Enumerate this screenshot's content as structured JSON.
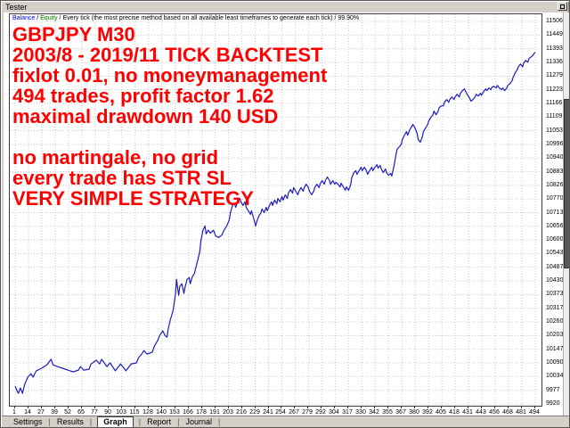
{
  "window": {
    "title": "Tester"
  },
  "legend": {
    "balance_label": "Balance",
    "equity_label": "Equity",
    "separator": " / ",
    "model_text": "Every tick (the most precise method based on all available least timeframes to generate each tick)",
    "quality_text": "99.90%"
  },
  "annotation": {
    "color": "#ff0000",
    "lines": [
      "GBPJPY M30",
      "2003/8 - 2019/11 TICK BACKTEST",
      "fixlot 0.01, no moneymanagement",
      "494 trades, profit factor 1.62",
      "maximal drawdown 140 USD",
      "",
      "no martingale, no grid",
      "every trade has STR SL",
      "VERY SIMPLE STRATEGY"
    ]
  },
  "tabs": {
    "separator": "|",
    "items": [
      {
        "label": "Settings",
        "active": false
      },
      {
        "label": "Results",
        "active": false
      },
      {
        "label": "Graph",
        "active": true
      },
      {
        "label": "Report",
        "active": false
      },
      {
        "label": "Journal",
        "active": false
      }
    ]
  },
  "chart_data": {
    "type": "line",
    "title": "",
    "xlabel": "",
    "ylabel": "",
    "grid": "dotted",
    "legend_position": "top-left",
    "line_color": "#1c1cc0",
    "x_range": [
      1,
      494
    ],
    "y_range": [
      9920,
      11506
    ],
    "x_ticks": [
      "1",
      "14",
      "27",
      "39",
      "52",
      "65",
      "77",
      "90",
      "103",
      "115",
      "128",
      "140",
      "153",
      "166",
      "178",
      "191",
      "203",
      "216",
      "229",
      "241",
      "254",
      "267",
      "279",
      "292",
      "304",
      "317",
      "330",
      "342",
      "355",
      "367",
      "380",
      "392",
      "405",
      "418",
      "431",
      "443",
      "456",
      "468",
      "481",
      "494"
    ],
    "y_ticks": [
      "11506",
      "11449",
      "11393",
      "11336",
      "11279",
      "11223",
      "11166",
      "11109",
      "11053",
      "10996",
      "10940",
      "10883",
      "10826",
      "10770",
      "10713",
      "10656",
      "10600",
      "10543",
      "10487",
      "10430",
      "10373",
      "10317",
      "10260",
      "10203",
      "10147",
      "10090",
      "10034",
      "9977",
      "9920"
    ],
    "series": [
      {
        "name": "Balance",
        "x": [
          1,
          3,
          4,
          6,
          8,
          10,
          13,
          16,
          18,
          21,
          26,
          31,
          35,
          37,
          41,
          46,
          51,
          56,
          61,
          63,
          66,
          71,
          73,
          78,
          81,
          83,
          88,
          91,
          96,
          101,
          106,
          111,
          116,
          118,
          121,
          123,
          126,
          131,
          133,
          136,
          138,
          141,
          143,
          145,
          146,
          148,
          150,
          151,
          153,
          154,
          156,
          157,
          159,
          161,
          162,
          164,
          166,
          167,
          169,
          171,
          172,
          174,
          176,
          177,
          179,
          181,
          182,
          184,
          186,
          189,
          191,
          194,
          197,
          199,
          201,
          202,
          204,
          205,
          207,
          209,
          210,
          212,
          214,
          215,
          217,
          219,
          220,
          222,
          224,
          225,
          227,
          229,
          230,
          232,
          234,
          235,
          237,
          239,
          240,
          242,
          244,
          245,
          247,
          249,
          250,
          252,
          254,
          255,
          257,
          259,
          260,
          262,
          264,
          265,
          267,
          269,
          270,
          272,
          274,
          275,
          277,
          279,
          280,
          282,
          284,
          285,
          287,
          289,
          290,
          292,
          294,
          295,
          297,
          299,
          300,
          302,
          304,
          305,
          307,
          309,
          310,
          312,
          314,
          315,
          317,
          319,
          320,
          322,
          324,
          325,
          327,
          329,
          330,
          332,
          334,
          335,
          337,
          339,
          340,
          342,
          344,
          345,
          347,
          348,
          350,
          352,
          353,
          355,
          357,
          358,
          360,
          362,
          363,
          365,
          367,
          368,
          370,
          372,
          373,
          375,
          377,
          378,
          380,
          382,
          383,
          385,
          387,
          388,
          390,
          392,
          393,
          395,
          397,
          398,
          400,
          402,
          403,
          405,
          407,
          408,
          410,
          412,
          413,
          415,
          417,
          418,
          420,
          422,
          423,
          425,
          427,
          428,
          430,
          432,
          433,
          435,
          437,
          438,
          440,
          442,
          443,
          445,
          447,
          448,
          450,
          452,
          453,
          455,
          457,
          458,
          460,
          462,
          463,
          465,
          467,
          468,
          470,
          472,
          473,
          475,
          477,
          478,
          480,
          482,
          483,
          485,
          487,
          488,
          490,
          492,
          493,
          494
        ],
        "y": [
          9994,
          9972,
          9964,
          9986,
          9964,
          10001,
          10031,
          10045,
          10031,
          10057,
          10068,
          10082,
          10105,
          10082,
          10075,
          10068,
          10060,
          10053,
          10060,
          10075,
          10060,
          10064,
          10086,
          10101,
          10086,
          10105,
          10075,
          10090,
          10057,
          10086,
          10057,
          10086,
          10090,
          10112,
          10127,
          10141,
          10127,
          10134,
          10160,
          10182,
          10204,
          10223,
          10204,
          10197,
          10230,
          10267,
          10296,
          10315,
          10378,
          10437,
          10370,
          10407,
          10418,
          10378,
          10403,
          10437,
          10444,
          10418,
          10448,
          10462,
          10481,
          10514,
          10551,
          10595,
          10640,
          10658,
          10625,
          10640,
          10628,
          10640,
          10617,
          10610,
          10621,
          10640,
          10654,
          10662,
          10684,
          10713,
          10743,
          10750,
          10735,
          10758,
          10772,
          10758,
          10743,
          10758,
          10735,
          10721,
          10706,
          10721,
          10691,
          10658,
          10676,
          10699,
          10713,
          10728,
          10713,
          10735,
          10721,
          10743,
          10758,
          10743,
          10765,
          10750,
          10772,
          10758,
          10780,
          10765,
          10787,
          10772,
          10794,
          10809,
          10794,
          10817,
          10802,
          10787,
          10802,
          10817,
          10802,
          10817,
          10831,
          10817,
          10802,
          10787,
          10802,
          10817,
          10831,
          10817,
          10831,
          10846,
          10831,
          10846,
          10861,
          10846,
          10831,
          10846,
          10831,
          10839,
          10831,
          10820,
          10835,
          10820,
          10806,
          10820,
          10806,
          10828,
          10857,
          10879,
          10887,
          10872,
          10887,
          10901,
          10887,
          10901,
          10887,
          10872,
          10887,
          10901,
          10887,
          10901,
          10912,
          10898,
          10909,
          10894,
          10879,
          10894,
          10879,
          10868,
          10876,
          10865,
          10905,
          10953,
          10975,
          10986,
          10997,
          11016,
          11034,
          11049,
          11034,
          11056,
          11071,
          11079,
          11064,
          11042,
          11016,
          11005,
          11027,
          11049,
          11064,
          11079,
          11093,
          11108,
          11119,
          11134,
          11119,
          11134,
          11149,
          11156,
          11156,
          11171,
          11182,
          11171,
          11182,
          11193,
          11182,
          11193,
          11204,
          11193,
          11208,
          11219,
          11226,
          11215,
          11200,
          11186,
          11175,
          11182,
          11193,
          11204,
          11197,
          11208,
          11200,
          11215,
          11226,
          11219,
          11230,
          11223,
          11233,
          11237,
          11230,
          11241,
          11230,
          11223,
          11230,
          11219,
          11230,
          11241,
          11248,
          11259,
          11274,
          11293,
          11307,
          11318,
          11329,
          11318,
          11333,
          11344,
          11337,
          11352,
          11359,
          11366,
          11374,
          11378
        ]
      }
    ]
  }
}
